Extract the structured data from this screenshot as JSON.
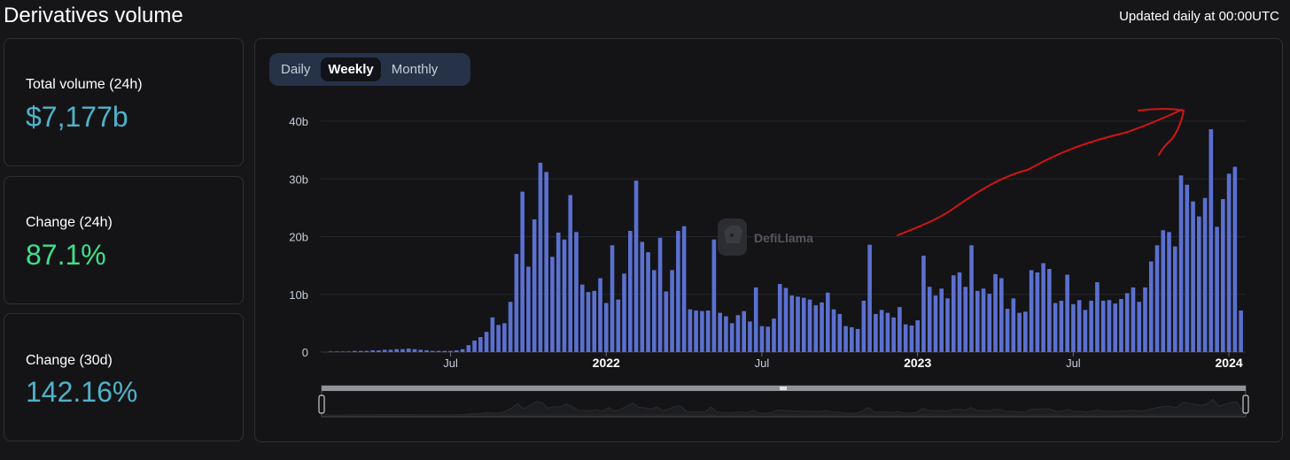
{
  "header": {
    "title": "Derivatives volume",
    "updated_note": "Updated daily at 00:00UTC"
  },
  "stats": [
    {
      "label": "Total volume (24h)",
      "value": "$7,177b",
      "color": "#4fb3c9"
    },
    {
      "label": "Change (24h)",
      "value": "87.1%",
      "color": "#3ee08b"
    },
    {
      "label": "Change (30d)",
      "value": "142.16%",
      "color": "#4fb3c9"
    }
  ],
  "tabs": [
    {
      "label": "Daily",
      "active": false
    },
    {
      "label": "Weekly",
      "active": true
    },
    {
      "label": "Monthly",
      "active": false
    }
  ],
  "watermark": {
    "text": "DefiLlama"
  },
  "colors": {
    "bar": "#5b70cf",
    "grid": "#24262c",
    "annotation": "#d41414",
    "text_secondary": "#c6cdd8"
  },
  "chart_data": {
    "type": "bar",
    "ylim": [
      0,
      40
    ],
    "y_ticks": [
      {
        "value": 0,
        "label": "0"
      },
      {
        "value": 10,
        "label": "10b"
      },
      {
        "value": 20,
        "label": "20b"
      },
      {
        "value": 30,
        "label": "30b"
      },
      {
        "value": 40,
        "label": "40b"
      }
    ],
    "x_ticks": [
      {
        "index": 20,
        "label": "Jul",
        "bold": false
      },
      {
        "index": 46,
        "label": "2022",
        "bold": true
      },
      {
        "index": 72,
        "label": "Jul",
        "bold": false
      },
      {
        "index": 98,
        "label": "2023",
        "bold": true
      },
      {
        "index": 124,
        "label": "Jul",
        "bold": false
      },
      {
        "index": 150,
        "label": "2024",
        "bold": true
      }
    ],
    "values": [
      0.1,
      0.1,
      0.1,
      0.1,
      0.2,
      0.2,
      0.2,
      0.3,
      0.3,
      0.4,
      0.4,
      0.5,
      0.5,
      0.6,
      0.5,
      0.4,
      0.3,
      0.2,
      0.2,
      0.2,
      0.2,
      0.3,
      0.5,
      1.2,
      2.0,
      2.6,
      3.5,
      6.0,
      4.7,
      5.0,
      8.7,
      17.0,
      27.8,
      14.8,
      23.0,
      32.8,
      31.2,
      16.5,
      20.7,
      19.5,
      27.2,
      20.8,
      11.7,
      10.4,
      10.6,
      12.8,
      8.5,
      18.5,
      9.1,
      13.6,
      21.0,
      29.7,
      19.1,
      17.3,
      14.2,
      19.8,
      10.5,
      14.2,
      21.0,
      21.8,
      7.4,
      7.2,
      7.1,
      7.2,
      19.5,
      6.8,
      6.2,
      5.0,
      6.4,
      7.1,
      5.3,
      11.2,
      4.5,
      4.4,
      5.8,
      11.8,
      11.1,
      9.8,
      9.6,
      9.4,
      9.1,
      8.1,
      8.6,
      10.3,
      7.4,
      6.6,
      4.5,
      4.3,
      4.0,
      8.9,
      18.6,
      6.6,
      7.3,
      6.8,
      6.0,
      7.8,
      4.8,
      4.6,
      5.5,
      16.7,
      11.3,
      9.8,
      11.0,
      9.3,
      13.3,
      13.8,
      11.3,
      18.5,
      10.6,
      11.0,
      10.1,
      13.5,
      12.8,
      7.5,
      9.3,
      6.8,
      7.0,
      14.2,
      13.8,
      15.4,
      14.4,
      8.5,
      8.9,
      13.4,
      8.3,
      9.0,
      7.3,
      8.9,
      12.1,
      8.9,
      9.0,
      8.4,
      9.2,
      10.2,
      11.2,
      8.7,
      11.2,
      15.7,
      18.5,
      21.1,
      20.8,
      18.3,
      30.6,
      29.0,
      26.1,
      23.5,
      26.7,
      38.6,
      21.7,
      26.5,
      30.9,
      32.1,
      7.2
    ]
  }
}
